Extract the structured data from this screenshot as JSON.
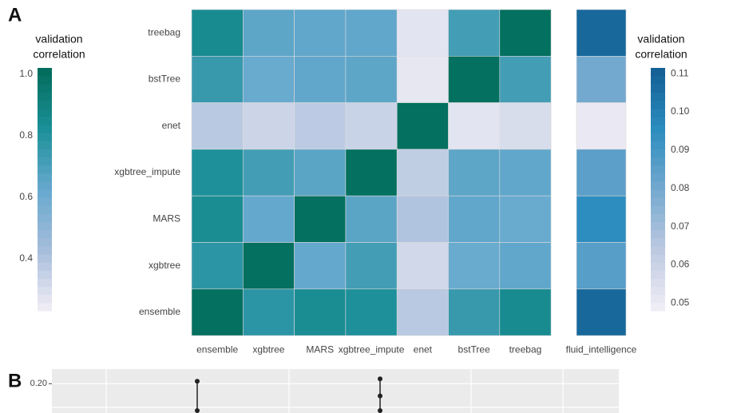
{
  "chart_data": [
    {
      "type": "heatmap",
      "label": "A",
      "rows": [
        "treebag",
        "bstTree",
        "enet",
        "xgbtree_impute",
        "MARS",
        "xgbtree",
        "ensemble"
      ],
      "columns": [
        "ensemble",
        "xgbtree",
        "MARS",
        "xgbtree_impute",
        "enet",
        "bstTree",
        "treebag"
      ],
      "values": [
        [
          0.85,
          0.65,
          0.64,
          0.64,
          0.27,
          0.72,
          1.0
        ],
        [
          0.75,
          0.62,
          0.64,
          0.65,
          0.26,
          1.0,
          0.72
        ],
        [
          0.38,
          0.33,
          0.37,
          0.34,
          1.0,
          0.27,
          0.3
        ],
        [
          0.82,
          0.72,
          0.66,
          1.0,
          0.36,
          0.65,
          0.64
        ],
        [
          0.84,
          0.63,
          1.0,
          0.66,
          0.4,
          0.64,
          0.62
        ],
        [
          0.78,
          1.0,
          0.63,
          0.72,
          0.32,
          0.62,
          0.64
        ],
        [
          1.0,
          0.78,
          0.84,
          0.82,
          0.38,
          0.75,
          0.85
        ]
      ],
      "legend_title": [
        "validation",
        "correlation"
      ],
      "colors": [
        "#f3eef6",
        "#a6bddb",
        "#67a9cf",
        "#1c9099",
        "#016c59"
      ],
      "clim": [
        0.23,
        1.02
      ],
      "cticks": [
        {
          "value": 1.0,
          "label": "1.0"
        },
        0.8,
        0.6,
        0.4
      ]
    },
    {
      "type": "heatmap",
      "columns": [
        "fluid_intelligence"
      ],
      "values": [
        [
          0.108
        ],
        [
          0.08
        ],
        [
          0.05
        ],
        [
          0.085
        ],
        [
          0.095
        ],
        [
          0.086
        ],
        [
          0.108
        ]
      ],
      "legend_title": [
        "validation",
        "correlation"
      ],
      "colors": [
        "#f1eef6",
        "#bdc9e1",
        "#74a9cf",
        "#2b8cbe",
        "#135e93"
      ],
      "clim": [
        0.048,
        0.1115
      ],
      "cticks": [
        0.11,
        {
          "value": 0.1,
          "label": "0.10"
        },
        0.09,
        0.08,
        0.07,
        0.06,
        0.05
      ]
    },
    {
      "type": "dot",
      "label": "B",
      "categories": [
        null,
        null
      ],
      "ylim": [
        0.188,
        0.206
      ],
      "yticks": [
        {
          "value": 0.2,
          "label": "0.20"
        }
      ],
      "series": [
        {
          "color": "#222222",
          "values": [
            0.201,
            0.202
          ]
        },
        {
          "color": "#222222",
          "values": [
            null,
            0.195
          ]
        },
        {
          "color": "#222222",
          "values": [
            0.189,
            0.189
          ]
        }
      ]
    }
  ]
}
